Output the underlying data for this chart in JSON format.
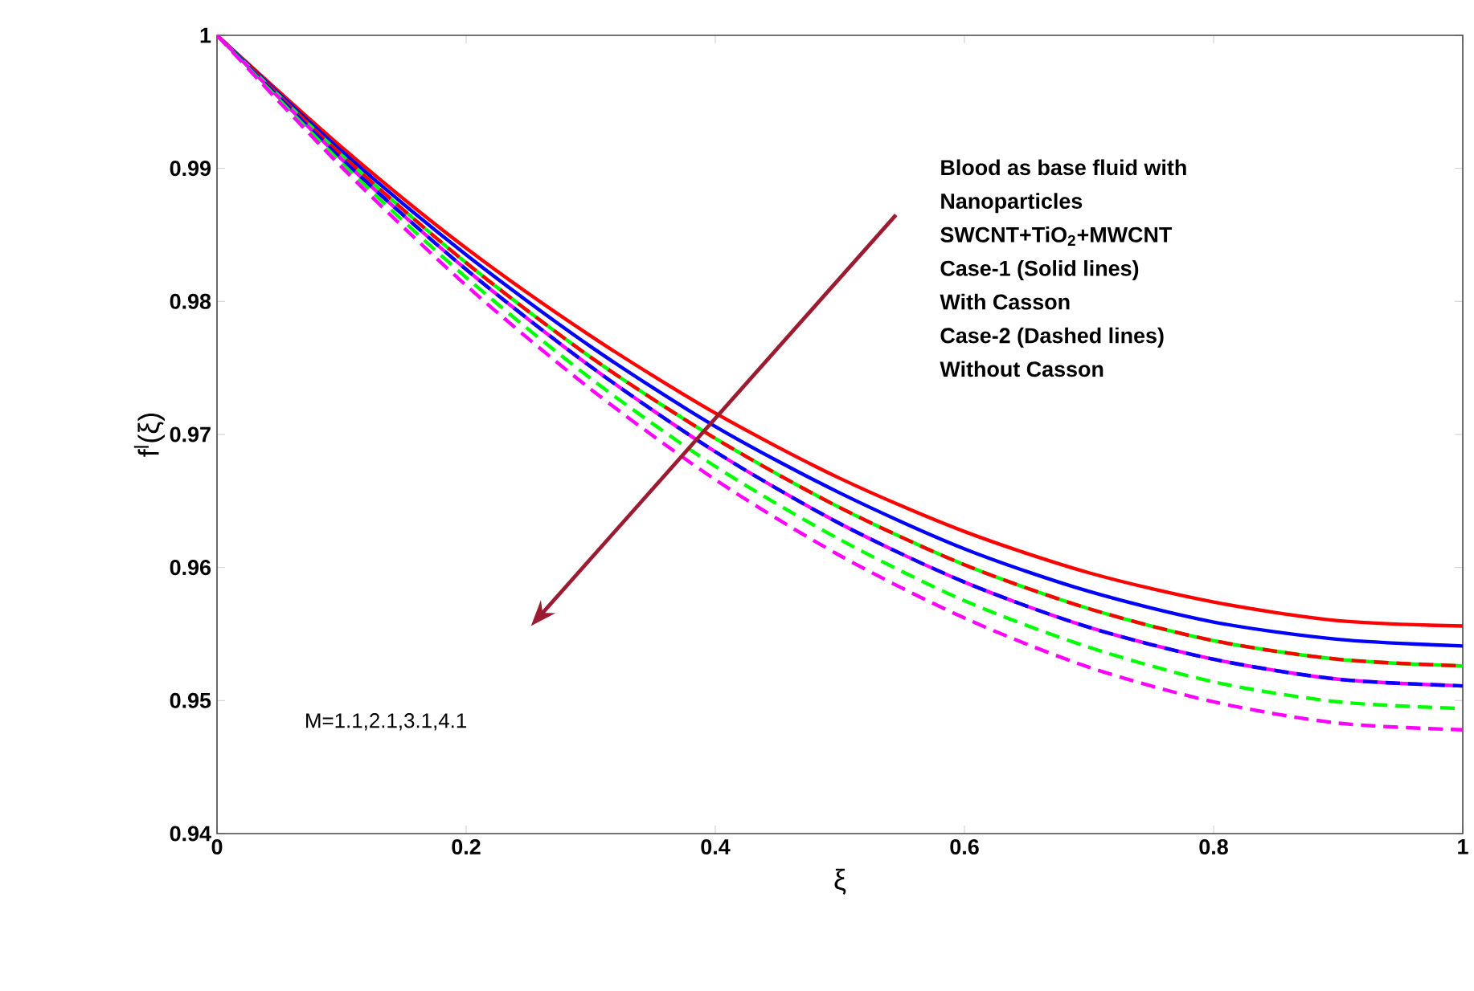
{
  "chart_data": {
    "type": "line",
    "xlabel": "ξ",
    "ylabel": "f$^{l}$(ξ)",
    "x": [
      0,
      0.1,
      0.2,
      0.3,
      0.4,
      0.5,
      0.6,
      0.7,
      0.8,
      0.9,
      1
    ],
    "series": [
      {
        "color": "#ff0000",
        "line_style": "solid",
        "values": [
          1,
          0.9916,
          0.984,
          0.9774,
          0.9716,
          0.9667,
          0.9627,
          0.9596,
          0.9574,
          0.956,
          0.9556
        ]
      },
      {
        "color": "#0000ff",
        "line_style": "solid",
        "values": [
          1,
          0.9913,
          0.9835,
          0.9766,
          0.9706,
          0.9656,
          0.9614,
          0.9582,
          0.9559,
          0.9546,
          0.9541
        ]
      },
      {
        "color": "#00ff00",
        "line_style": "solid",
        "values": [
          1,
          0.991,
          0.9829,
          0.9758,
          0.9697,
          0.9645,
          0.9602,
          0.9569,
          0.9545,
          0.9531,
          0.9526
        ]
      },
      {
        "color": "#ff00ff",
        "line_style": "solid",
        "values": [
          1,
          0.9907,
          0.9824,
          0.9751,
          0.9687,
          0.9633,
          0.9589,
          0.9555,
          0.9531,
          0.9516,
          0.9511
        ]
      },
      {
        "color": "#ff0000",
        "line_style": "dashed",
        "values": [
          1,
          0.991,
          0.9829,
          0.9758,
          0.9697,
          0.9645,
          0.9602,
          0.9569,
          0.9545,
          0.9531,
          0.9526
        ]
      },
      {
        "color": "#0000ff",
        "line_style": "dashed",
        "values": [
          1,
          0.9907,
          0.9824,
          0.9751,
          0.9687,
          0.9633,
          0.9589,
          0.9555,
          0.9531,
          0.9516,
          0.9511
        ]
      },
      {
        "color": "#00ff00",
        "line_style": "dashed",
        "values": [
          1,
          0.9904,
          0.9818,
          0.9742,
          0.9676,
          0.9621,
          0.9575,
          0.954,
          0.9514,
          0.9499,
          0.9494
        ]
      },
      {
        "color": "#ff00ff",
        "line_style": "dashed",
        "values": [
          1,
          0.9901,
          0.9812,
          0.9734,
          0.9666,
          0.9609,
          0.9562,
          0.9525,
          0.9499,
          0.9483,
          0.9478
        ]
      }
    ],
    "xlim": [
      0,
      1
    ],
    "ylim": [
      0.94,
      1
    ],
    "xticks": [
      0,
      0.2,
      0.4,
      0.6,
      0.8,
      1
    ],
    "yticks": [
      0.94,
      0.95,
      0.96,
      0.97,
      0.98,
      0.99,
      1
    ],
    "grid": false,
    "marker": "none",
    "annotations": [
      "Blood as base fluid with",
      "Nanoparticles",
      "SWCNT+TiO$_{2}$+MWCNT",
      "Case-1 (Solid lines)",
      "With Casson",
      "Case-2 (Dashed lines)",
      "Without Casson",
      "M=1.1,2.1,3.1,4.1"
    ]
  }
}
